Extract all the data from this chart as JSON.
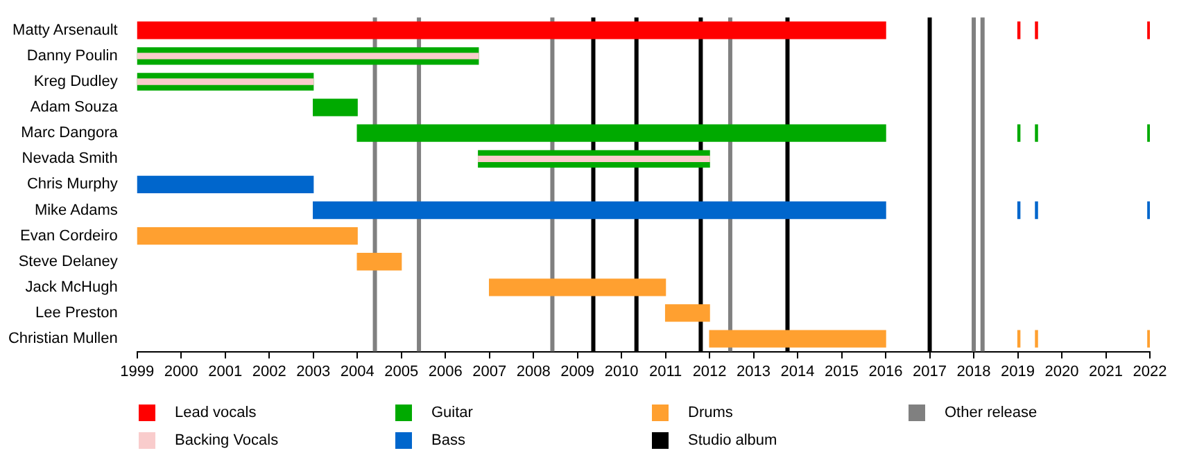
{
  "chart_data": {
    "type": "bar",
    "orientation": "horizontal",
    "legend": "bottom",
    "categories": [
      "Matty Arsenault",
      "Danny Poulin",
      "Kreg Dudley",
      "Adam Souza",
      "Marc Dangora",
      "Nevada Smith",
      "Chris Murphy",
      "Mike Adams",
      "Evan Cordeiro",
      "Steve Delaney",
      "Jack McHugh",
      "Lee Preston",
      "Christian Mullen"
    ],
    "xlim": [
      1999,
      2022
    ],
    "xticks": [
      1999,
      2000,
      2001,
      2002,
      2003,
      2004,
      2005,
      2006,
      2007,
      2008,
      2009,
      2010,
      2011,
      2012,
      2013,
      2014,
      2015,
      2016,
      2017,
      2018,
      2019,
      2020,
      2021,
      2022
    ],
    "series": [
      {
        "name": "Lead vocals",
        "color": "#ff0000",
        "base": [
          1999,
          null,
          null,
          null,
          null,
          null,
          null,
          null,
          null,
          null,
          null,
          null,
          null
        ],
        "values": [
          17,
          null,
          null,
          null,
          null,
          null,
          null,
          null,
          null,
          null,
          null,
          null,
          null
        ]
      },
      {
        "name": "Backing Vocals",
        "color": "#f9cccc",
        "base": [
          null,
          1999,
          1999,
          null,
          null,
          2006.75,
          null,
          null,
          null,
          null,
          null,
          null,
          null
        ],
        "values": [
          null,
          7.75,
          4,
          null,
          null,
          5.25,
          null,
          null,
          null,
          null,
          null,
          null,
          null
        ]
      },
      {
        "name": "Guitar",
        "color": "#00aa00",
        "base": [
          null,
          1999,
          1999,
          2003,
          2004,
          2006.75,
          null,
          null,
          null,
          null,
          null,
          null,
          null
        ],
        "values": [
          null,
          7.75,
          4,
          1,
          12,
          5.25,
          null,
          null,
          null,
          null,
          null,
          null,
          null
        ]
      },
      {
        "name": "Bass",
        "color": "#0066cc",
        "base": [
          null,
          null,
          null,
          null,
          null,
          null,
          1999,
          2003,
          null,
          null,
          null,
          null,
          null
        ],
        "values": [
          null,
          null,
          null,
          null,
          null,
          null,
          4,
          13,
          null,
          null,
          null,
          null,
          null
        ]
      },
      {
        "name": "Drums",
        "color": "#ffa030",
        "base": [
          null,
          null,
          null,
          null,
          null,
          null,
          null,
          null,
          1999,
          2004,
          2007,
          2011,
          2012
        ],
        "values": [
          null,
          null,
          null,
          null,
          null,
          null,
          null,
          null,
          5,
          1,
          4,
          1,
          4
        ]
      },
      {
        "colors": [
          "#ff0000",
          null,
          null,
          null,
          "#00aa00",
          null,
          null,
          "#0066cc",
          null,
          null,
          null,
          null,
          "#ffa030"
        ],
        "base": [
          2019,
          null,
          null,
          null,
          2019,
          null,
          null,
          2019,
          null,
          null,
          null,
          null,
          2019
        ],
        "values": [
          0.05,
          null,
          null,
          null,
          0.05,
          null,
          null,
          0.05,
          null,
          null,
          null,
          null,
          0.05
        ]
      },
      {
        "colors": [
          "#ff0000",
          null,
          null,
          null,
          "#00aa00",
          null,
          null,
          "#0066cc",
          null,
          null,
          null,
          null,
          "#ffa030"
        ],
        "base": [
          2019.4,
          null,
          null,
          null,
          2019.4,
          null,
          null,
          2019.4,
          null,
          null,
          null,
          null,
          2019.4
        ],
        "values": [
          0.05,
          null,
          null,
          null,
          0.05,
          null,
          null,
          0.05,
          null,
          null,
          null,
          null,
          0.05
        ]
      },
      {
        "colors": [
          "#ff0000",
          null,
          null,
          null,
          "#00aa00",
          null,
          null,
          "#0066cc",
          null,
          null,
          null,
          null,
          "#ffa030"
        ],
        "base": [
          2021.95,
          null,
          null,
          null,
          2021.95,
          null,
          null,
          2021.95,
          null,
          null,
          null,
          null,
          2021.95
        ],
        "values": [
          0.05,
          null,
          null,
          null,
          0.05,
          null,
          null,
          0.05,
          null,
          null,
          null,
          null,
          0.05
        ]
      }
    ],
    "ref_lines": [
      {
        "axis": "x",
        "value": 2009.36,
        "label": "Studio album",
        "color": "#000000"
      },
      {
        "axis": "x",
        "value": 2010.34,
        "color": "#000000"
      },
      {
        "axis": "x",
        "value": 2011.8,
        "color": "#000000"
      },
      {
        "axis": "x",
        "value": 2013.77,
        "color": "#000000"
      },
      {
        "axis": "x",
        "value": 2017,
        "color": "#000000"
      },
      {
        "axis": "x",
        "value": 2004.4,
        "label": "Other release",
        "color": "#808080"
      },
      {
        "axis": "x",
        "value": 2005.4,
        "color": "#808080"
      },
      {
        "axis": "x",
        "value": 2008.43,
        "color": "#808080"
      },
      {
        "axis": "x",
        "value": 2012.47,
        "color": "#808080"
      },
      {
        "axis": "x",
        "value": 2018,
        "color": "#808080"
      },
      {
        "axis": "x",
        "value": 2018.2,
        "color": "#808080"
      }
    ]
  }
}
